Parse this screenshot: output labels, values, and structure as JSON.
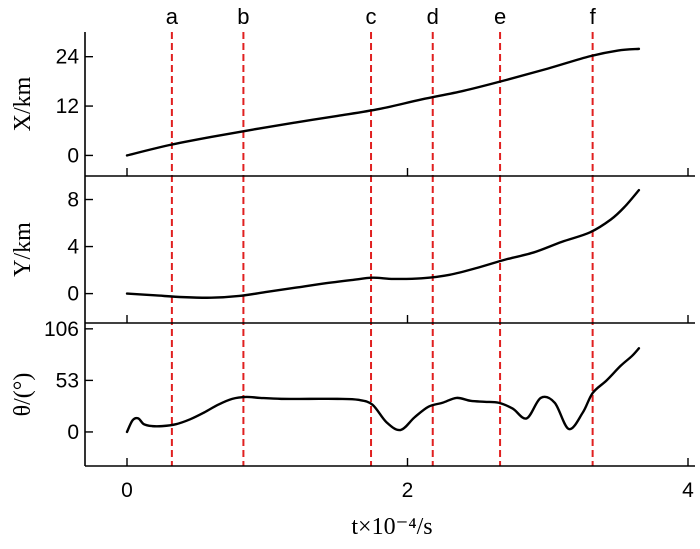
{
  "chart_data": {
    "type": "line",
    "xlabel": "t×10⁻⁴/s",
    "xlim": [
      0,
      4
    ],
    "xticks": [
      0,
      2,
      4
    ],
    "markers": [
      {
        "label": "a",
        "t": 0.32
      },
      {
        "label": "b",
        "t": 0.83
      },
      {
        "label": "c",
        "t": 1.74
      },
      {
        "label": "d",
        "t": 2.18
      },
      {
        "label": "e",
        "t": 2.66
      },
      {
        "label": "f",
        "t": 3.32
      }
    ],
    "panels": [
      {
        "ylabel": "X/km",
        "ylim": [
          -5,
          30
        ],
        "yticks": [
          0,
          12,
          24
        ],
        "x": [
          0,
          0.3,
          0.6,
          0.9,
          1.2,
          1.5,
          1.8,
          2.1,
          2.4,
          2.7,
          3.0,
          3.3,
          3.5,
          3.65
        ],
        "y": [
          0,
          2.5,
          4.5,
          6.3,
          8.0,
          9.6,
          11.3,
          13.6,
          15.7,
          18.3,
          21.1,
          24.1,
          25.5,
          25.9
        ]
      },
      {
        "ylabel": "Y/km",
        "ylim": [
          -2.5,
          10
        ],
        "yticks": [
          0,
          4,
          8
        ],
        "x": [
          0,
          0.2,
          0.4,
          0.6,
          0.8,
          1.0,
          1.2,
          1.4,
          1.6,
          1.75,
          1.9,
          2.1,
          2.3,
          2.5,
          2.7,
          2.9,
          3.1,
          3.3,
          3.45,
          3.55,
          3.65
        ],
        "y": [
          0,
          -0.15,
          -0.3,
          -0.35,
          -0.2,
          0.15,
          0.5,
          0.85,
          1.15,
          1.35,
          1.25,
          1.3,
          1.6,
          2.2,
          2.9,
          3.5,
          4.4,
          5.2,
          6.3,
          7.4,
          8.8
        ]
      },
      {
        "ylabel": "θ/(°)",
        "ylim": [
          -35,
          112
        ],
        "yticks": [
          0,
          53,
          106
        ],
        "x": [
          0,
          0.04,
          0.08,
          0.12,
          0.18,
          0.25,
          0.35,
          0.45,
          0.55,
          0.65,
          0.75,
          0.85,
          0.95,
          1.1,
          1.3,
          1.5,
          1.65,
          1.75,
          1.85,
          1.95,
          2.05,
          2.15,
          2.25,
          2.35,
          2.45,
          2.55,
          2.65,
          2.75,
          2.85,
          2.95,
          3.05,
          3.15,
          3.25,
          3.32,
          3.42,
          3.52,
          3.6,
          3.65
        ],
        "y": [
          0,
          12,
          14,
          8,
          6,
          6,
          8,
          13,
          20,
          28,
          34,
          36,
          35,
          34,
          34,
          34,
          33,
          28,
          10,
          2,
          15,
          26,
          30,
          35,
          32,
          31,
          30,
          24,
          14,
          35,
          30,
          3,
          20,
          40,
          53,
          68,
          78,
          86
        ]
      }
    ]
  }
}
